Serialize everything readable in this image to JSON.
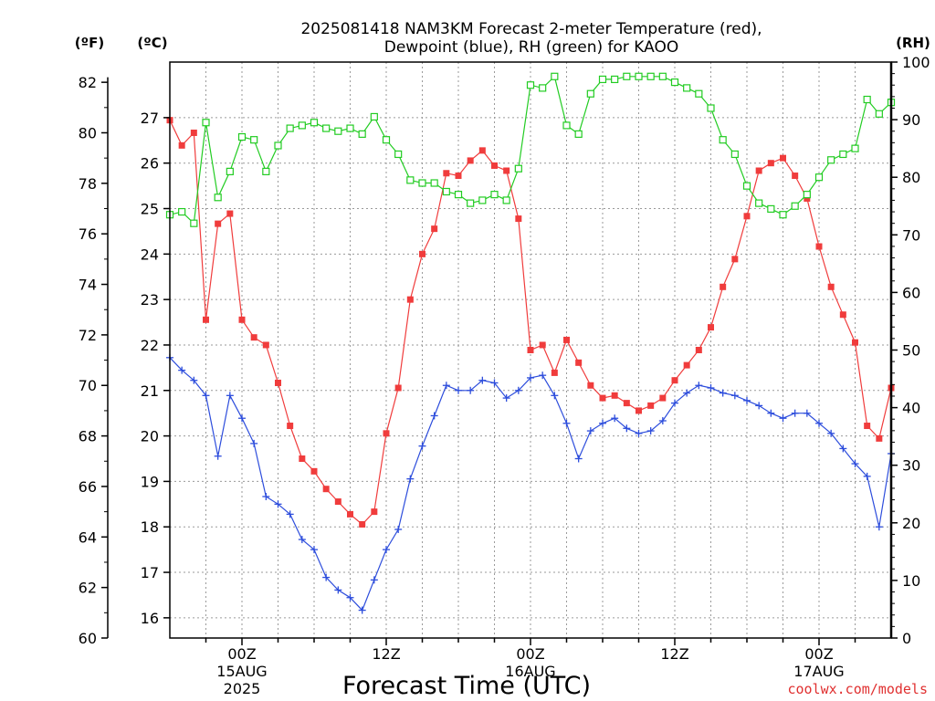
{
  "chart_data": {
    "type": "line",
    "title_line1": "2025081418 NAM3KM Forecast 2-meter Temperature (red),",
    "title_line2": "Dewpoint (blue), RH (green) for KAOO",
    "xlabel": "Forecast Time (UTC)",
    "credit": "coolwx.com/models",
    "unit_f": "(ºF)",
    "unit_c": "(ºC)",
    "unit_rh": "(RH)",
    "x_range_hours": [
      -6,
      54
    ],
    "x_ticks": [
      {
        "hour": 0,
        "label": "00Z",
        "sub1": "15AUG",
        "sub2": "2025"
      },
      {
        "hour": 12,
        "label": "12Z",
        "sub1": "",
        "sub2": ""
      },
      {
        "hour": 24,
        "label": "00Z",
        "sub1": "16AUG",
        "sub2": ""
      },
      {
        "hour": 36,
        "label": "12Z",
        "sub1": "",
        "sub2": ""
      },
      {
        "hour": 48,
        "label": "00Z",
        "sub1": "17AUG",
        "sub2": ""
      }
    ],
    "y_f_ticks": [
      "60",
      "62",
      "64",
      "66",
      "68",
      "70",
      "72",
      "74",
      "76",
      "78",
      "80",
      "82"
    ],
    "y_c_ticks": [
      "16",
      "17",
      "18",
      "19",
      "20",
      "21",
      "22",
      "23",
      "24",
      "25",
      "26",
      "27"
    ],
    "y_rh_ticks": [
      "0",
      "10",
      "20",
      "30",
      "40",
      "50",
      "60",
      "70",
      "80",
      "90",
      "100"
    ],
    "y_f_range": [
      60,
      82.8
    ],
    "y_rh_range": [
      0,
      100
    ],
    "grid": true,
    "series": [
      {
        "name": "2-meter Temperature",
        "color": "#f03c3c",
        "marker": "filled-square",
        "units": "F",
        "values": [
          80.5,
          79.5,
          80,
          72.6,
          76.4,
          76.8,
          72.6,
          71.9,
          71.6,
          70.1,
          68.4,
          67.1,
          66.6,
          65.9,
          65.4,
          64.9,
          64.5,
          65,
          68.1,
          69.9,
          73.4,
          75.2,
          76.2,
          78.4,
          78.3,
          78.9,
          79.3,
          78.7,
          78.5,
          76.6,
          71.4,
          71.6,
          70.5,
          71.8,
          70.9,
          70,
          69.5,
          69.6,
          69.3,
          69,
          69.2,
          69.5,
          70.2,
          70.8,
          71.4,
          72.3,
          73.9,
          75,
          76.7,
          78.5,
          78.8,
          79,
          78.3,
          77.4,
          75.5,
          73.9,
          72.8,
          71.7,
          68.4,
          67.9,
          69.9
        ]
      },
      {
        "name": "Dewpoint",
        "color": "#2d4ddc",
        "marker": "plus",
        "units": "F",
        "values": [
          71.1,
          70.6,
          70.2,
          69.6,
          67.2,
          69.6,
          68.7,
          67.7,
          65.6,
          65.3,
          64.9,
          63.9,
          63.5,
          62.4,
          61.9,
          61.6,
          61.1,
          62.3,
          63.5,
          64.3,
          66.3,
          67.6,
          68.8,
          70,
          69.8,
          69.8,
          70.2,
          70.1,
          69.5,
          69.8,
          70.3,
          70.4,
          69.6,
          68.5,
          67.1,
          68.2,
          68.5,
          68.7,
          68.3,
          68.1,
          68.2,
          68.6,
          69.3,
          69.7,
          70,
          69.9,
          69.7,
          69.6,
          69.4,
          69.2,
          68.9,
          68.7,
          68.9,
          68.9,
          68.5,
          68.1,
          67.5,
          66.9,
          66.4,
          64.4,
          67.3
        ]
      },
      {
        "name": "RH",
        "color": "#22cc22",
        "marker": "open-square",
        "units": "%",
        "values": [
          73.5,
          74,
          72,
          89.5,
          76.5,
          81,
          87,
          86.5,
          81,
          85.5,
          88.5,
          89,
          89.5,
          88.5,
          88,
          88.5,
          87.5,
          90.5,
          86.5,
          84,
          79.5,
          79,
          79,
          77.5,
          77,
          75.5,
          76,
          77,
          76,
          81.5,
          96,
          95.5,
          97.5,
          89,
          87.5,
          94.5,
          97,
          97,
          97.5,
          97.5,
          97.5,
          97.5,
          96.5,
          95.5,
          94.5,
          92,
          86.5,
          84,
          78.5,
          75.5,
          74.5,
          73.5,
          75,
          77,
          80,
          83,
          84,
          85,
          93.5,
          91,
          93
        ]
      }
    ]
  }
}
